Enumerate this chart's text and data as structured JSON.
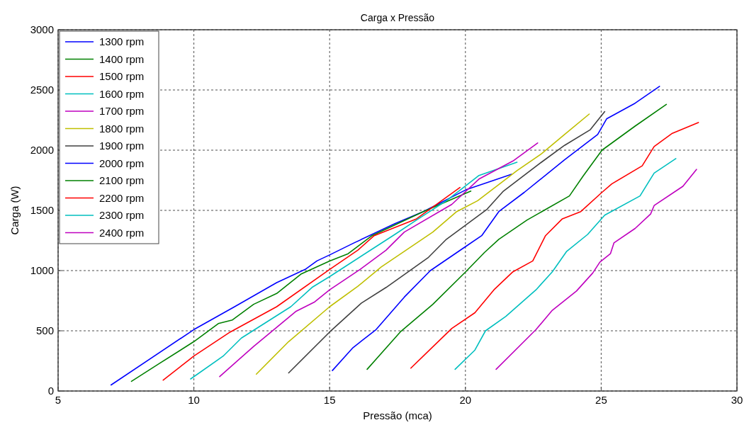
{
  "chart_data": {
    "type": "line",
    "title": "Carga x Pressão",
    "xlabel": "Pressão (mca)",
    "ylabel": "Carga (W)",
    "xlim": [
      5,
      30
    ],
    "xticks": [
      5,
      10,
      15,
      20,
      25,
      30
    ],
    "ylim": [
      0,
      3000
    ],
    "yticks": [
      0,
      500,
      1000,
      1500,
      2000,
      2500,
      3000
    ],
    "grid": true,
    "legend": "top left",
    "line_style": "solid",
    "marker": "none",
    "series": [
      {
        "name": "1300 rpm",
        "color": "#0000ff",
        "x": [
          6.95,
          10,
          11.5,
          13.05,
          14.1,
          14.53,
          15,
          15.9,
          17.4,
          18.45,
          20.01,
          21.7
        ],
        "values": [
          50,
          510,
          700,
          900,
          1010,
          1080,
          1130,
          1230,
          1390,
          1490,
          1670,
          1800
        ]
      },
      {
        "name": "1400 rpm",
        "color": "#008000",
        "x": [
          7.7,
          8.74,
          10,
          10.9,
          11.42,
          12.2,
          13.05,
          13.94,
          15,
          15.68,
          16.56,
          18.45,
          20.2
        ],
        "values": [
          80,
          230,
          410,
          560,
          590,
          720,
          810,
          970,
          1080,
          1140,
          1290,
          1490,
          1660
        ]
      },
      {
        "name": "1500 rpm",
        "color": "#ff0000",
        "x": [
          8.87,
          10,
          11.34,
          13.05,
          15,
          16.04,
          16.64,
          18.2,
          19.8
        ],
        "values": [
          90,
          290,
          490,
          700,
          1010,
          1170,
          1290,
          1430,
          1690
        ]
      },
      {
        "name": "1600 rpm",
        "color": "#00bfbf",
        "x": [
          9.88,
          11.08,
          11.75,
          13.57,
          14.35,
          15,
          17.4,
          18.2,
          19.3,
          20.5,
          21.9
        ],
        "values": [
          100,
          290,
          440,
          700,
          860,
          950,
          1300,
          1420,
          1580,
          1790,
          1900
        ]
      },
      {
        "name": "1700 rpm",
        "color": "#bf00bf",
        "x": [
          10.95,
          12.2,
          13.75,
          14.45,
          15,
          16.12,
          17.08,
          17.75,
          19.5,
          20.5,
          21.75,
          22.66
        ],
        "values": [
          120,
          370,
          660,
          740,
          840,
          1010,
          1170,
          1320,
          1550,
          1760,
          1910,
          2060
        ]
      },
      {
        "name": "1800 rpm",
        "color": "#bfbf00",
        "x": [
          12.3,
          13.49,
          15,
          16.04,
          16.9,
          18.8,
          19.68,
          20.45,
          21.9,
          22.8,
          23.65,
          24.56
        ],
        "values": [
          140,
          410,
          700,
          870,
          1030,
          1320,
          1490,
          1580,
          1830,
          1970,
          2130,
          2300
        ]
      },
      {
        "name": "1900 rpm",
        "color": "#404040",
        "x": [
          13.49,
          15,
          16.17,
          17.08,
          18.64,
          19.3,
          20.8,
          21.4,
          22.8,
          23.65,
          24.6,
          25.13
        ],
        "values": [
          150,
          490,
          730,
          860,
          1110,
          1260,
          1510,
          1660,
          1900,
          2040,
          2170,
          2320
        ]
      },
      {
        "name": "2000 rpm",
        "color": "#0000ff",
        "x": [
          15.1,
          15.86,
          16.71,
          17.75,
          18.71,
          20.01,
          20.6,
          21.23,
          22.17,
          23.65,
          24.87,
          25.2,
          26.25,
          27.15
        ],
        "values": [
          170,
          360,
          510,
          780,
          1000,
          1200,
          1290,
          1490,
          1650,
          1920,
          2130,
          2260,
          2390,
          2530
        ]
      },
      {
        "name": "2100 rpm",
        "color": "#008000",
        "x": [
          16.38,
          17.6,
          18.8,
          20.01,
          20.7,
          21.23,
          22.27,
          23.83,
          24.35,
          25.03,
          26.25,
          27.4
        ],
        "values": [
          180,
          490,
          720,
          990,
          1150,
          1260,
          1420,
          1620,
          1790,
          2000,
          2200,
          2380
        ]
      },
      {
        "name": "2200 rpm",
        "color": "#ff0000",
        "x": [
          17.99,
          19.5,
          20.35,
          21.05,
          21.75,
          22.48,
          22.95,
          23.57,
          24.25,
          25.03,
          25.39,
          26.51,
          26.95,
          27.62,
          28.58
        ],
        "values": [
          190,
          520,
          650,
          840,
          990,
          1080,
          1290,
          1430,
          1490,
          1650,
          1720,
          1870,
          2030,
          2140,
          2230
        ]
      },
      {
        "name": "2300 rpm",
        "color": "#00bfbf",
        "x": [
          19.62,
          20.35,
          20.74,
          21.49,
          22.6,
          23.2,
          23.73,
          24.5,
          25.13,
          26.43,
          26.95,
          27.75
        ],
        "values": [
          180,
          340,
          500,
          620,
          840,
          990,
          1160,
          1300,
          1460,
          1620,
          1810,
          1930
        ]
      },
      {
        "name": "2400 rpm",
        "color": "#bf00bf",
        "x": [
          21.13,
          22.6,
          23.2,
          24.09,
          24.69,
          24.95,
          25.34,
          25.47,
          26.25,
          26.82,
          26.95,
          28.01,
          28.51
        ],
        "values": [
          180,
          510,
          670,
          830,
          980,
          1070,
          1140,
          1230,
          1350,
          1470,
          1540,
          1700,
          1840
        ]
      }
    ]
  }
}
